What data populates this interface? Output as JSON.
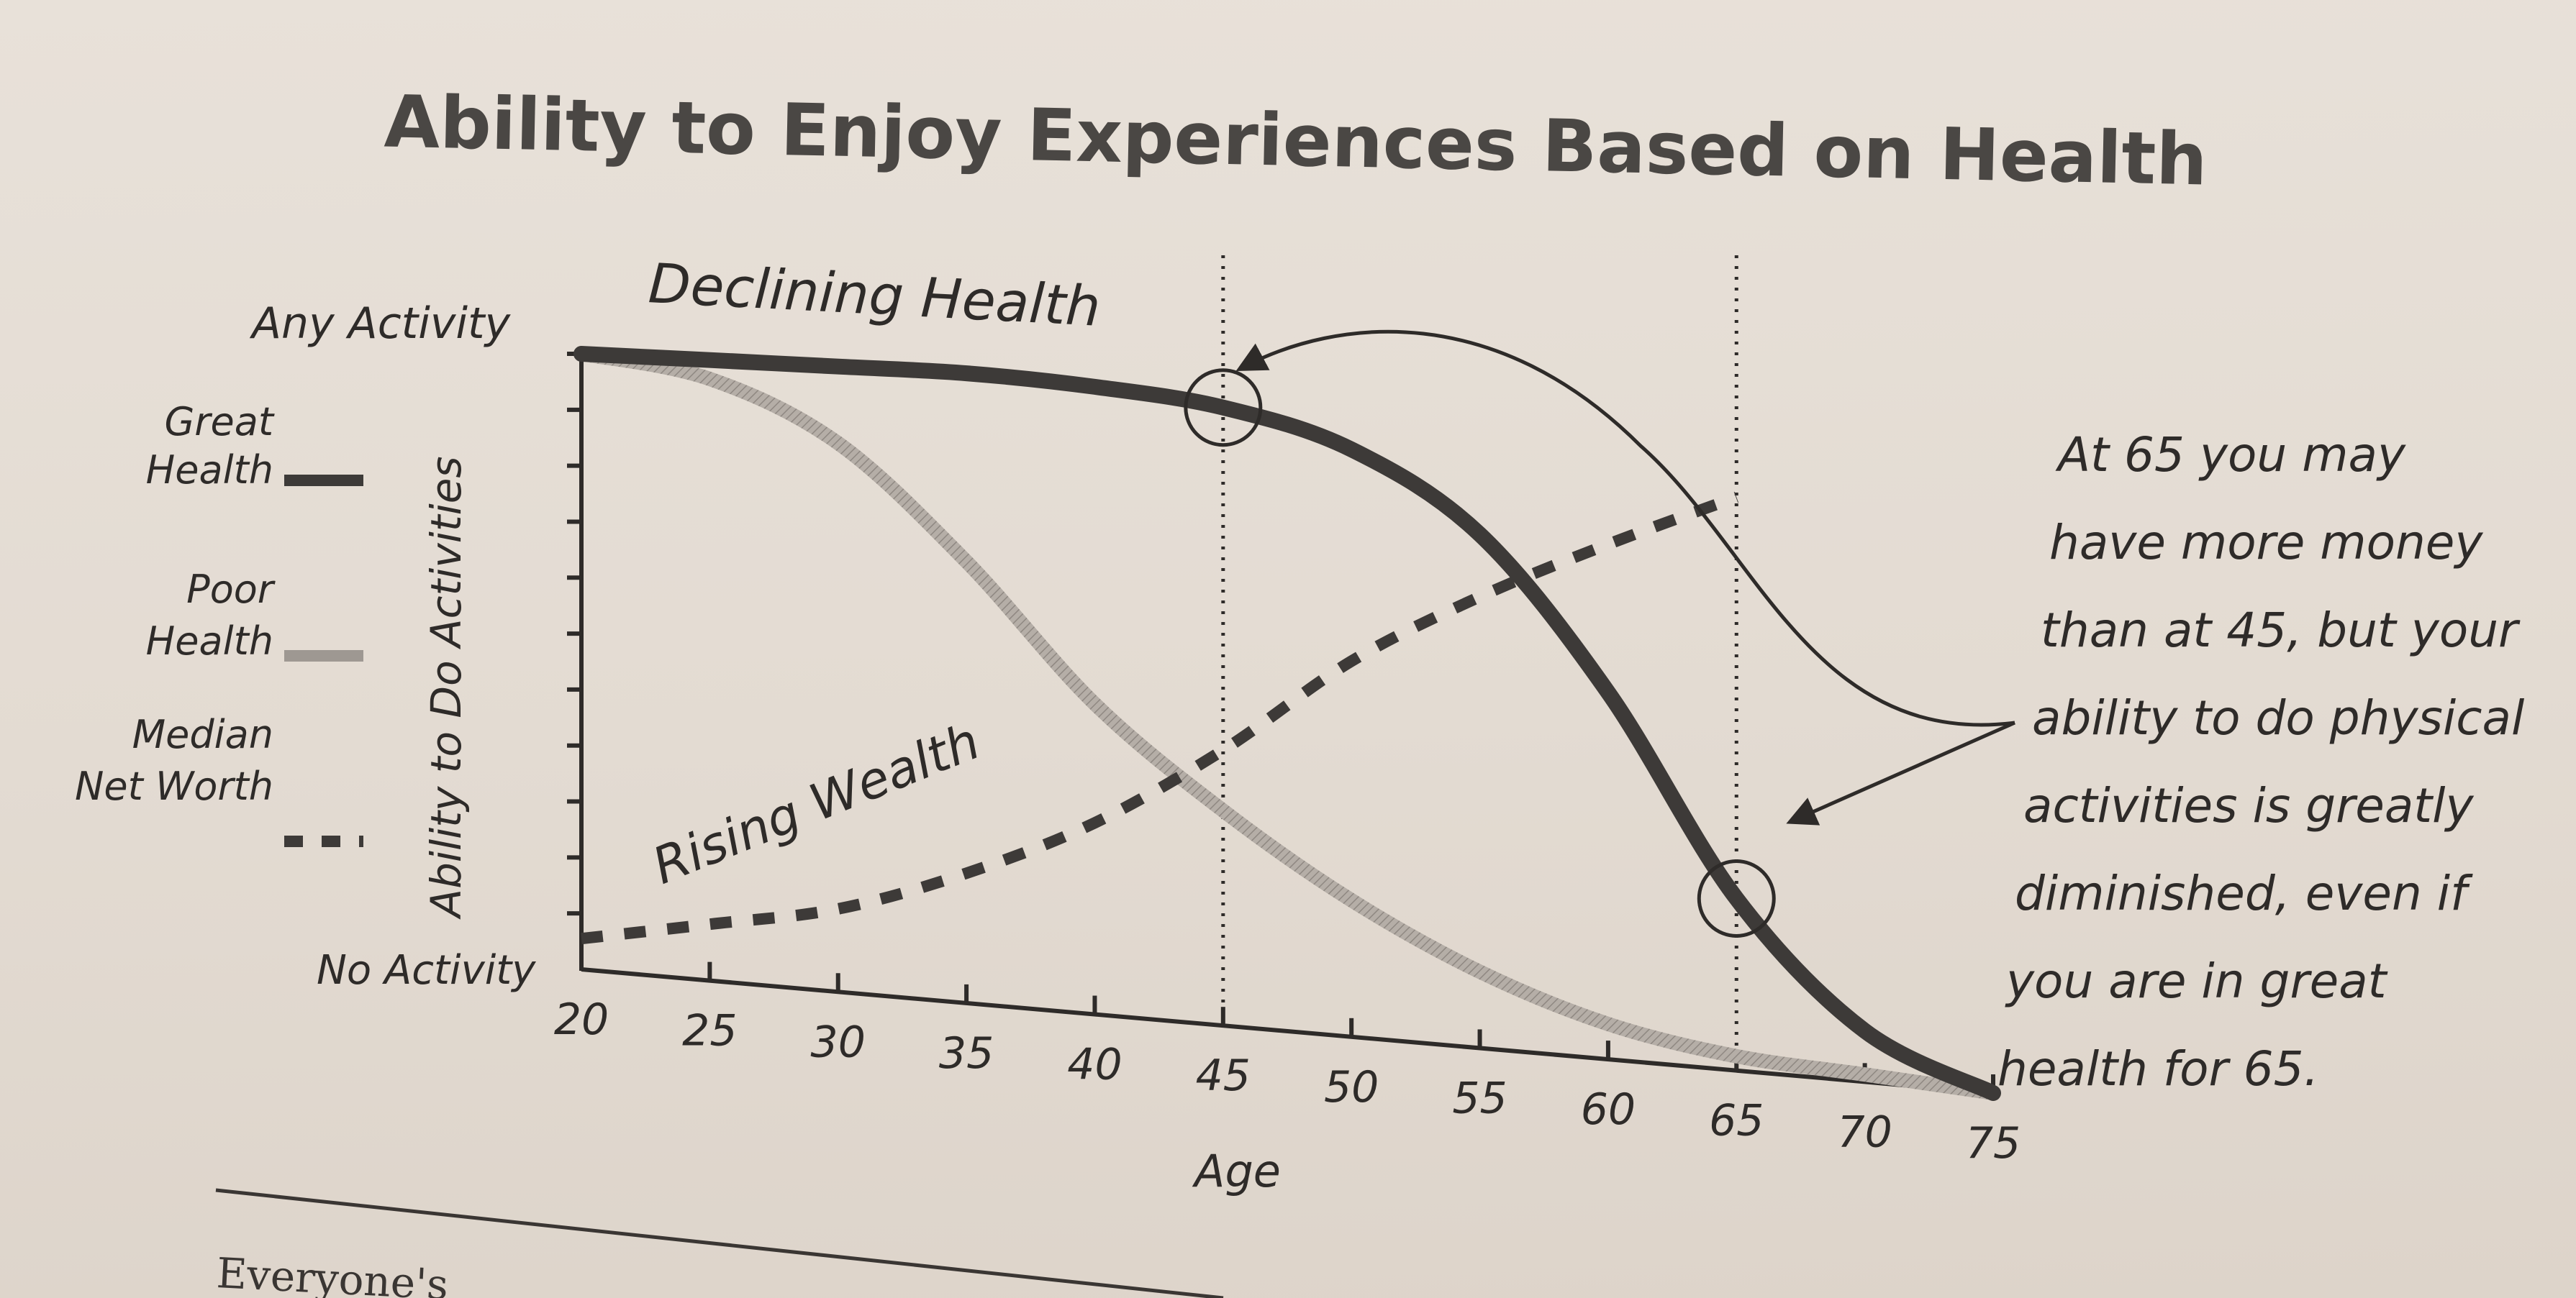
{
  "chart_data": {
    "type": "line",
    "title": "Ability to Enjoy Experiences Based on Health",
    "xlabel": "Age",
    "ylabel": "Ability to Do Activities",
    "y_top_label": "Any Activity",
    "y_bottom_label": "No Activity",
    "xlim": [
      20,
      75
    ],
    "ylim": [
      0,
      1
    ],
    "x_ticks": [
      20,
      25,
      30,
      35,
      40,
      45,
      50,
      55,
      60,
      65,
      70,
      75
    ],
    "x": [
      20,
      25,
      30,
      35,
      40,
      45,
      50,
      55,
      60,
      65,
      70,
      75
    ],
    "series": [
      {
        "name": "Great Health",
        "values": [
          1.0,
          0.99,
          0.98,
          0.97,
          0.95,
          0.92,
          0.86,
          0.74,
          0.52,
          0.24,
          0.07,
          0.0
        ]
      },
      {
        "name": "Poor Health",
        "values": [
          1.0,
          0.96,
          0.86,
          0.68,
          0.47,
          0.32,
          0.2,
          0.11,
          0.05,
          0.02,
          0.01,
          0.0
        ]
      },
      {
        "name": "Median Net Worth",
        "values": [
          0.05,
          0.09,
          0.13,
          0.2,
          0.29,
          0.41,
          0.55,
          0.65,
          0.73,
          0.8,
          null,
          null
        ]
      }
    ],
    "markers_x": [
      45,
      65
    ],
    "annotations": {
      "declining": "Declining Health",
      "rising": "Rising Wealth",
      "note": [
        "At 65 you may",
        "have more money",
        "than at 45, but your",
        "ability to do physical",
        "activities is greatly",
        "diminished, even if",
        "you are in great",
        "health for 65."
      ]
    },
    "legend": [
      {
        "label": [
          "Great",
          "Health"
        ],
        "color": "#3d3a38",
        "style": "solid"
      },
      {
        "label": [
          "Poor",
          "Health"
        ],
        "color": "#9e9892",
        "style": "solid"
      },
      {
        "label": [
          "Median",
          "Net Worth"
        ],
        "color": "#3d3a38",
        "style": "dashed"
      }
    ],
    "legend_position": "left",
    "grid": false
  },
  "footer": {
    "text": "Everyone's"
  }
}
